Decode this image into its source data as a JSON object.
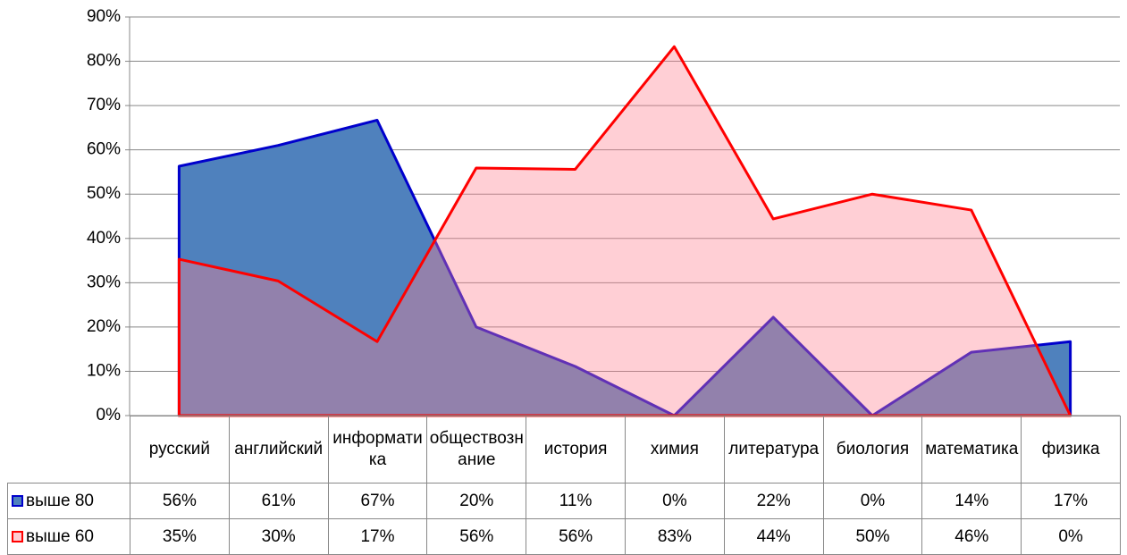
{
  "chart_data": {
    "type": "area",
    "categories": [
      "русский",
      "английский",
      "информатика",
      "обществознание",
      "история",
      "химия",
      "литература",
      "биология",
      "математика",
      "физика"
    ],
    "series": [
      {
        "name": "выше 80",
        "color": "#4f81bd",
        "line_color": "#0000cc",
        "values": [
          56.3,
          61,
          66.7,
          20,
          11.1,
          0,
          22.2,
          0,
          14.3,
          16.7
        ],
        "value_labels": [
          "56%",
          "61%",
          "67%",
          "20%",
          "11%",
          "0%",
          "22%",
          "0%",
          "14%",
          "17%"
        ]
      },
      {
        "name": "выше 60",
        "color": "#ff8090",
        "line_color": "#ff0000",
        "values": [
          35.3,
          30.4,
          16.7,
          55.9,
          55.6,
          83.3,
          44.4,
          50,
          46.4,
          0
        ],
        "value_labels": [
          "35%",
          "30%",
          "17%",
          "56%",
          "56%",
          "83%",
          "44%",
          "50%",
          "46%",
          "0%"
        ]
      }
    ],
    "ylim": [
      0,
      90
    ],
    "yticks": [
      {
        "value": 0,
        "label": "0%"
      },
      {
        "value": 10,
        "label": "10%"
      },
      {
        "value": 20,
        "label": "20%"
      },
      {
        "value": 30,
        "label": "30%"
      },
      {
        "value": 40,
        "label": "40%"
      },
      {
        "value": 50,
        "label": "50%"
      },
      {
        "value": 60,
        "label": "60%"
      },
      {
        "value": 70,
        "label": "70%"
      },
      {
        "value": 80,
        "label": "80%"
      },
      {
        "value": 90,
        "label": "90%"
      }
    ],
    "grid": true,
    "data_table": true
  }
}
